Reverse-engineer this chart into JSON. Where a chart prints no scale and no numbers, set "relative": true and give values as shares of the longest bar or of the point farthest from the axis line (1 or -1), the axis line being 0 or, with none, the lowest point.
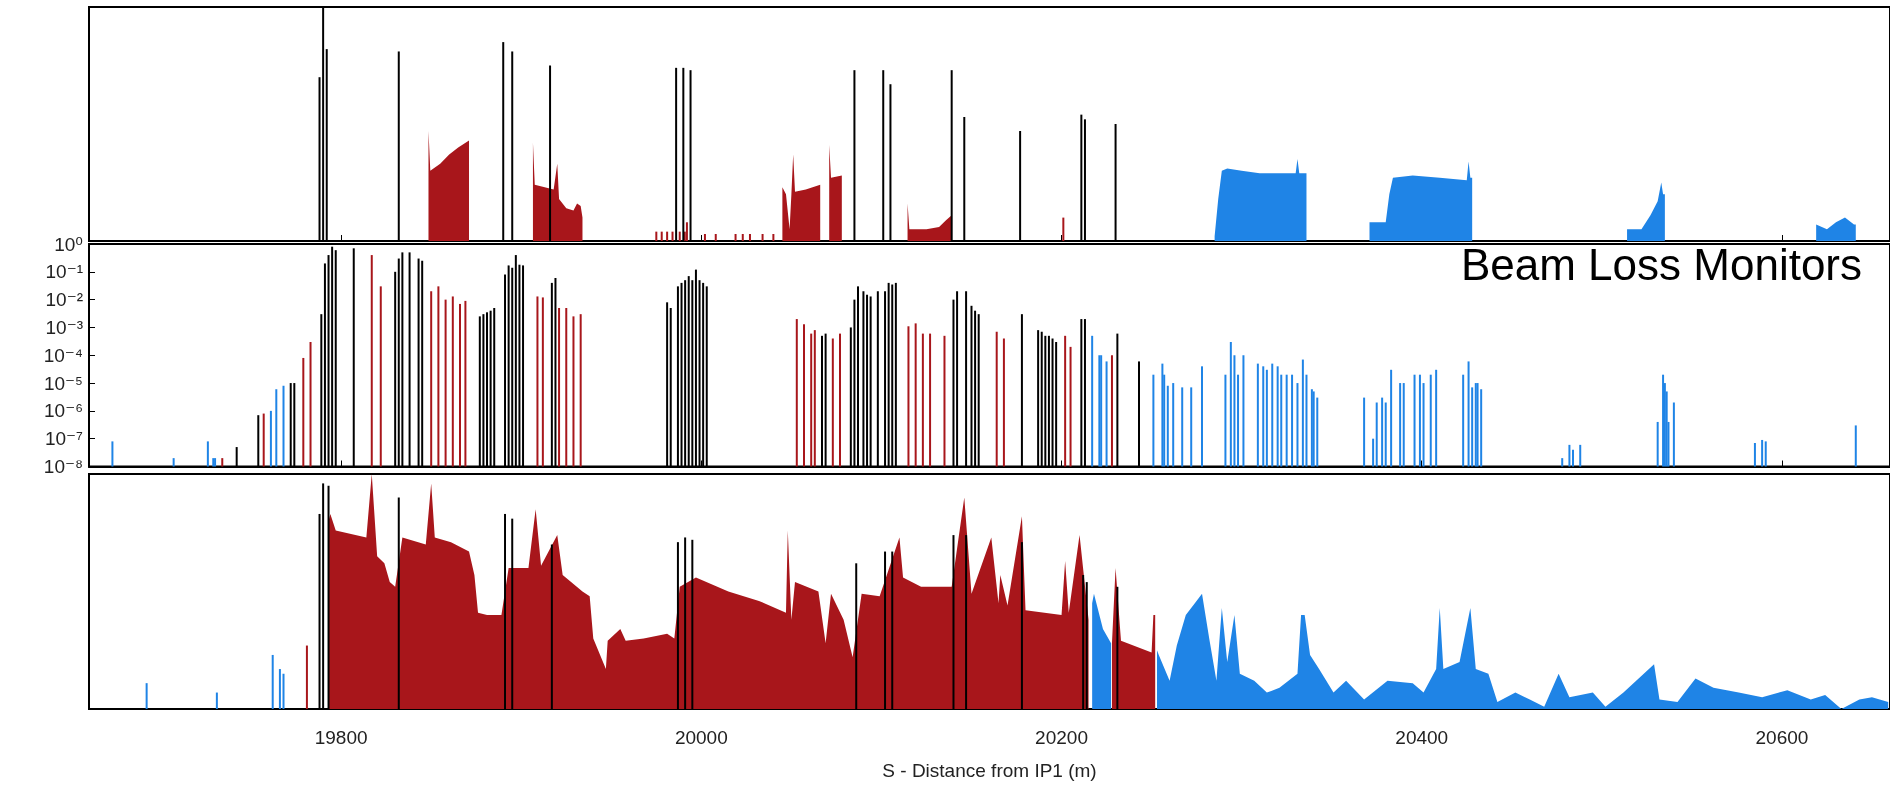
{
  "chart_data": [
    {
      "type": "bar",
      "relative": true,
      "xlim": [
        19660,
        20660
      ],
      "xticks": [
        19800,
        20000,
        20200,
        20400,
        20600
      ],
      "tick_labels": false,
      "series": [
        {
          "type": "area",
          "color": "#a8161b",
          "x": [
            19848.5,
            19849.5,
            19855,
            19860,
            19865,
            19871,
            19880,
            19906.5,
            19907.5,
            19918,
            19920,
            19921,
            19925,
            19929,
            19931,
            19933,
            19934,
            19950,
            20045,
            20047,
            20049,
            20050,
            20051,
            20052,
            20058,
            20066,
            20068,
            20071,
            20072,
            20078,
            20090,
            20114.5,
            20115.5,
            20125,
            20132,
            20136,
            20139
          ],
          "values": [
            0.47,
            0.3,
            0.33,
            0.37,
            0.4,
            0.43,
            null,
            0.42,
            0.24,
            0.22,
            0.33,
            0.18,
            0.14,
            0.13,
            0.16,
            0.15,
            0.1,
            null,
            0.23,
            0.2,
            0.05,
            0.2,
            0.37,
            0.21,
            0.22,
            0.24,
            null,
            0.41,
            0.27,
            0.28,
            null,
            0.16,
            0.05,
            0.05,
            0.06,
            0.09,
            0.11
          ]
        },
        {
          "type": "area",
          "color": "#1f84e6",
          "x": [
            20285,
            20287,
            20289,
            20292,
            20300,
            20310,
            20320,
            20330,
            20331,
            20332,
            20336,
            20350,
            20371,
            20380,
            20382,
            20384,
            20395,
            20410,
            20425,
            20426,
            20427,
            20428,
            20470,
            20514,
            20522,
            20527,
            20531,
            20533,
            20534,
            20535,
            20580,
            20619,
            20625,
            20630,
            20635,
            20640,
            20641
          ],
          "values": [
            0.02,
            0.18,
            0.3,
            0.31,
            0.3,
            0.29,
            0.29,
            0.29,
            0.35,
            0.29,
            0.29,
            null,
            0.08,
            0.08,
            0.2,
            0.27,
            0.28,
            0.27,
            0.26,
            0.34,
            0.27,
            0.27,
            null,
            0.05,
            0.05,
            0.11,
            0.17,
            0.25,
            0.2,
            0.2,
            null,
            0.07,
            0.05,
            0.08,
            0.1,
            0.07,
            0.07
          ]
        },
        {
          "color": "#a8161b",
          "x": [
            19975,
            19978,
            19981,
            19984,
            19988,
            19990.8,
            19992,
            20002,
            20008,
            20019,
            20023,
            20027,
            20034,
            20040,
            20201
          ],
          "values": [
            0.04,
            0.04,
            0.04,
            0.04,
            0.04,
            0.04,
            0.08,
            0.03,
            0.03,
            0.03,
            0.03,
            0.03,
            0.03,
            0.03,
            0.1
          ]
        },
        {
          "color": "#000000",
          "x": [
            19788,
            19790,
            19792,
            19832,
            19890,
            19895,
            19916,
            19986,
            19990,
            19994,
            20085,
            20101,
            20105,
            20139,
            20146,
            20177,
            20211,
            20213,
            20230
          ],
          "values": [
            0.7,
            1.0,
            0.82,
            0.81,
            0.85,
            0.81,
            0.75,
            0.74,
            0.74,
            0.73,
            0.73,
            0.73,
            0.67,
            0.73,
            0.53,
            0.47,
            0.54,
            0.52,
            0.5
          ]
        }
      ]
    },
    {
      "type": "bar",
      "title": "Beam Loss Monitors",
      "log": true,
      "xlim": [
        19660,
        20660
      ],
      "xticks": [
        19800,
        20000,
        20200,
        20400,
        20600
      ],
      "ylim": [
        1e-08,
        1
      ],
      "yticks": [
        {
          "value": 1,
          "label": "10⁰"
        },
        {
          "value": 0.1,
          "label": "10⁻¹"
        },
        {
          "value": 0.01,
          "label": "10⁻²"
        },
        {
          "value": 0.001,
          "label": "10⁻³"
        },
        {
          "value": 0.0001,
          "label": "10⁻⁴"
        },
        {
          "value": 1e-05,
          "label": "10⁻⁵"
        },
        {
          "value": 1e-06,
          "label": "10⁻⁶"
        },
        {
          "value": 1e-07,
          "label": "10⁻⁷"
        },
        {
          "value": 1e-08,
          "label": "10⁻⁸"
        }
      ],
      "tick_labels": "y",
      "series": [
        {
          "color": "#1f84e6",
          "x": [
            19673,
            19707,
            19726,
            19729,
            19730,
            19761,
            19764,
            19768,
            20217,
            20221,
            20222,
            20225,
            20251,
            20256,
            20257,
            20259,
            20262,
            20267,
            20272,
            20278,
            20291,
            20294,
            20296,
            20298,
            20301,
            20309,
            20312,
            20314,
            20317,
            20320,
            20322,
            20325,
            20328,
            20331,
            20334,
            20336,
            20339,
            20340,
            20342,
            20368,
            20373,
            20375,
            20378,
            20380,
            20383,
            20388,
            20390,
            20396,
            20399,
            20401,
            20405,
            20408,
            20423,
            20426,
            20428,
            20430,
            20431,
            20433,
            20478,
            20482,
            20484,
            20488,
            20531,
            20534,
            20535,
            20536,
            20537,
            20540,
            20585,
            20589,
            20591,
            20641
          ],
          "values": [
            8e-08,
            2e-08,
            8e-08,
            2e-08,
            2e-08,
            1e-06,
            6e-06,
            8e-06,
            0.0005,
            0.0001,
            0.0001,
            6e-05,
            2e-05,
            5e-05,
            2e-05,
            8e-06,
            1e-05,
            7e-06,
            7e-06,
            4e-05,
            2e-05,
            0.0003,
            0.0001,
            2e-05,
            0.0001,
            5e-05,
            4e-05,
            3e-05,
            5e-05,
            4e-05,
            2e-05,
            2e-05,
            2e-05,
            1e-05,
            7e-05,
            2e-05,
            6e-06,
            5e-06,
            3e-06,
            3e-06,
            1e-07,
            2e-06,
            3e-06,
            2e-06,
            3e-05,
            1e-05,
            1e-05,
            2e-05,
            2e-05,
            1e-05,
            2e-05,
            3e-05,
            2e-05,
            6e-05,
            7e-06,
            1e-05,
            1e-05,
            6e-06,
            2e-08,
            6e-08,
            4e-08,
            6e-08,
            4e-07,
            2e-05,
            1e-05,
            5e-06,
            4e-07,
            2e-06,
            7e-08,
            9e-08,
            8e-08,
            3e-07
          ]
        },
        {
          "color": "#a8161b",
          "x": [
            19734,
            19757,
            19779,
            19783,
            19817,
            19822,
            19850,
            19854,
            19858,
            19862,
            19866,
            19869,
            19909,
            19912,
            19921,
            19925,
            19929,
            19933,
            20053,
            20057,
            20061,
            20063,
            20073,
            20077,
            20115,
            20119,
            20123,
            20127,
            20135,
            20164,
            20168,
            20202,
            20205,
            20228
          ],
          "values": [
            2e-08,
            8e-07,
            8e-05,
            0.0003,
            0.4,
            0.03,
            0.02,
            0.03,
            0.01,
            0.013,
            0.007,
            0.009,
            0.013,
            0.012,
            0.005,
            0.005,
            0.0025,
            0.003,
            0.002,
            0.0013,
            0.0006,
            0.0008,
            0.0004,
            0.0006,
            0.0011,
            0.0014,
            0.0006,
            0.0006,
            0.0005,
            0.0007,
            0.0004,
            0.0005,
            0.0002,
            0.0001
          ]
        },
        {
          "color": "#000000",
          "x": [
            19742,
            19754,
            19772,
            19774,
            19789,
            19791,
            19793,
            19795,
            19797,
            19807,
            19830,
            19832,
            19834,
            19838,
            19843,
            19845,
            19877,
            19879,
            19881,
            19883,
            19885,
            19891,
            19893,
            19895,
            19897,
            19899,
            19901,
            19917,
            19919,
            19981,
            19983,
            19987,
            19989,
            19991,
            19993,
            19995,
            19997,
            19999,
            20001,
            20003,
            20067,
            20069,
            20083,
            20085,
            20087,
            20090,
            20092,
            20094,
            20098,
            20102,
            20104,
            20106,
            20108,
            20140,
            20142,
            20147,
            20150,
            20152,
            20154,
            20178,
            20187,
            20189,
            20191,
            20193,
            20195,
            20197,
            20211,
            20213,
            20231,
            20243
          ],
          "values": [
            5e-08,
            7e-07,
            1e-05,
            1e-05,
            0.003,
            0.2,
            0.4,
            0.8,
            0.6,
            0.7,
            0.1,
            0.3,
            0.5,
            0.5,
            0.3,
            0.25,
            0.0025,
            0.003,
            0.0035,
            0.004,
            0.005,
            0.08,
            0.17,
            0.14,
            0.4,
            0.18,
            0.17,
            0.04,
            0.06,
            0.008,
            0.005,
            0.03,
            0.04,
            0.05,
            0.07,
            0.05,
            0.12,
            0.05,
            0.04,
            0.03,
            0.0005,
            0.0006,
            0.001,
            0.01,
            0.03,
            0.02,
            0.015,
            0.013,
            0.02,
            0.02,
            0.04,
            0.035,
            0.04,
            0.01,
            0.02,
            0.02,
            0.006,
            0.004,
            0.003,
            0.003,
            0.0008,
            0.0007,
            0.0005,
            0.0005,
            0.0004,
            0.0003,
            0.002,
            0.002,
            0.0006,
            6e-05
          ]
        }
      ]
    },
    {
      "type": "bar",
      "relative": true,
      "xlabel": "S - Distance from IP1 (m)",
      "xlim": [
        19660,
        20660
      ],
      "xticks": [
        19800,
        20000,
        20200,
        20400,
        20600
      ],
      "tick_labels": "x",
      "series": [
        {
          "type": "area",
          "color": "#a8161b",
          "x": [
            19793,
            19794,
            19797,
            19814,
            19817,
            19820,
            19824,
            19827,
            19830,
            19834,
            19847,
            19850,
            19852,
            19861,
            19871,
            19874,
            19876,
            19881,
            19889,
            19893,
            19904,
            19908,
            19911,
            19920,
            19923,
            19934,
            19938,
            19940,
            19947,
            19948,
            19955,
            19958,
            19968,
            19981,
            19985,
            19988,
            19997,
            20015,
            20032,
            20047,
            20048,
            20050,
            20052,
            20065,
            20069,
            20072,
            20079,
            20084,
            20089,
            20099,
            20110,
            20112,
            20122,
            20139,
            20146,
            20150,
            20161,
            20165,
            20166,
            20170,
            20178,
            20180,
            20200,
            20202,
            20204,
            20210,
            20215,
            20220,
            20228,
            20230,
            20233,
            20250,
            20251,
            20252
          ],
          "values": [
            0.8,
            0.83,
            0.76,
            0.73,
            1.0,
            0.65,
            0.62,
            0.54,
            0.52,
            0.73,
            0.7,
            0.96,
            0.73,
            0.71,
            0.67,
            0.57,
            0.41,
            0.4,
            0.4,
            0.6,
            0.6,
            0.85,
            0.61,
            0.74,
            0.57,
            0.5,
            0.48,
            0.3,
            0.17,
            0.29,
            0.34,
            0.29,
            0.3,
            0.32,
            0.3,
            0.52,
            0.56,
            0.5,
            0.46,
            0.41,
            0.76,
            0.38,
            0.54,
            0.5,
            0.28,
            0.49,
            0.38,
            0.22,
            0.49,
            0.48,
            0.73,
            0.56,
            0.52,
            0.52,
            0.9,
            0.49,
            0.73,
            0.45,
            0.57,
            0.44,
            0.82,
            0.42,
            0.4,
            0.63,
            0.41,
            0.74,
            0.38,
            null,
            0.28,
            0.6,
            0.29,
            0.24,
            0.4,
            0.4
          ]
        },
        {
          "type": "area",
          "color": "#1f84e6",
          "x": [
            20217,
            20218,
            20223,
            20227.5,
            20240,
            20253,
            20254,
            20260,
            20264,
            20269,
            20274,
            20278,
            20282,
            20286,
            20289,
            20292,
            20296,
            20299,
            20307,
            20314,
            20321,
            20331,
            20333,
            20335,
            20338,
            20343,
            20351,
            20358,
            20368,
            20381,
            20395,
            20401,
            20408,
            20410,
            20412,
            20421,
            20427,
            20430,
            20437,
            20442,
            20452,
            20460,
            20468,
            20476,
            20482,
            20495,
            20502,
            20512,
            20529,
            20532,
            20542,
            20552,
            20562,
            20576,
            20589,
            20603,
            20616,
            20624,
            20633,
            20643,
            20650,
            20659
          ],
          "values": [
            0.45,
            0.49,
            0.34,
            0.28,
            null,
            0.25,
            0.23,
            0.12,
            0.27,
            0.4,
            0.45,
            0.49,
            0.3,
            0.12,
            0.43,
            0.2,
            0.4,
            0.15,
            0.12,
            0.07,
            0.09,
            0.15,
            0.4,
            0.4,
            0.23,
            0.17,
            0.07,
            0.12,
            0.04,
            0.12,
            0.11,
            0.07,
            0.17,
            0.43,
            0.17,
            0.2,
            0.43,
            0.17,
            0.15,
            0.03,
            0.07,
            0.04,
            0.01,
            0.15,
            0.05,
            0.07,
            0.01,
            0.07,
            0.19,
            0.04,
            0.03,
            0.13,
            0.09,
            0.07,
            0.05,
            0.08,
            0.04,
            0.06,
            0,
            0.04,
            0.05,
            0.03
          ]
        },
        {
          "color": "#1f84e6",
          "x": [
            19692,
            19731,
            19762,
            19766,
            19768
          ],
          "values": [
            0.11,
            0.07,
            0.23,
            0.17,
            0.15
          ]
        },
        {
          "color": "#a8161b",
          "x": [
            19781
          ],
          "values": [
            0.27
          ]
        },
        {
          "color": "#000000",
          "x": [
            19788,
            19790,
            19793,
            19832,
            19891,
            19895,
            19917,
            19987,
            19991,
            19995,
            20086,
            20102,
            20106,
            20140,
            20147,
            20178,
            20212,
            20214,
            20231
          ],
          "values": [
            0.83,
            0.96,
            0.95,
            0.9,
            0.83,
            0.81,
            0.7,
            0.71,
            0.73,
            0.72,
            0.62,
            0.67,
            0.67,
            0.74,
            0.74,
            0.71,
            0.57,
            0.54,
            0.52
          ]
        }
      ]
    }
  ]
}
